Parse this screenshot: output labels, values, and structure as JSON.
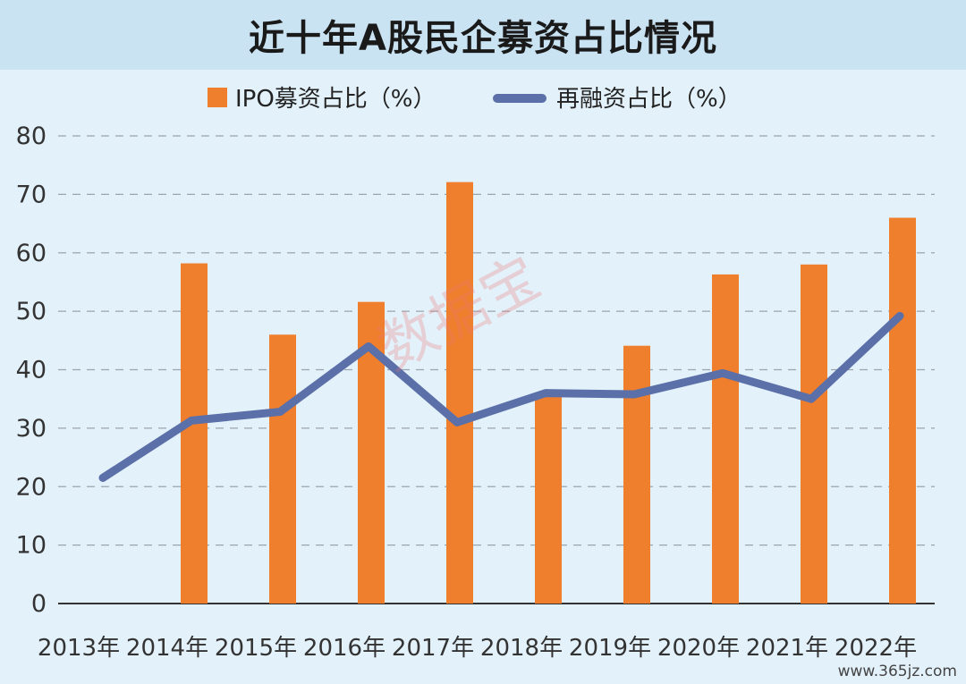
{
  "title": "近十年A股民企募资占比情况",
  "watermark": "数据宝",
  "source_url": "www.365jz.com",
  "colors": {
    "bar": "#f07f2d",
    "line": "#5b6fa8",
    "grid": "#9aa4ad",
    "axis": "#333333"
  },
  "chart_data": {
    "type": "bar",
    "categories": [
      "2013年",
      "2014年",
      "2015年",
      "2016年",
      "2017年",
      "2018年",
      "2019年",
      "2020年",
      "2021年",
      "2022年"
    ],
    "series": [
      {
        "name": "IPO募资占比（%）",
        "type": "bar",
        "values": [
          null,
          58.2,
          46,
          51.6,
          72.1,
          35.8,
          44.1,
          56.3,
          58,
          66
        ]
      },
      {
        "name": "再融资占比（%）",
        "type": "line",
        "values": [
          21.5,
          31.3,
          32.8,
          44,
          31,
          36,
          35.8,
          39.4,
          35,
          49.2
        ]
      }
    ],
    "ylim": [
      0,
      80
    ],
    "yticks": [
      0,
      10,
      20,
      30,
      40,
      50,
      60,
      70,
      80
    ],
    "grid": true,
    "legend_position": "top-center"
  }
}
